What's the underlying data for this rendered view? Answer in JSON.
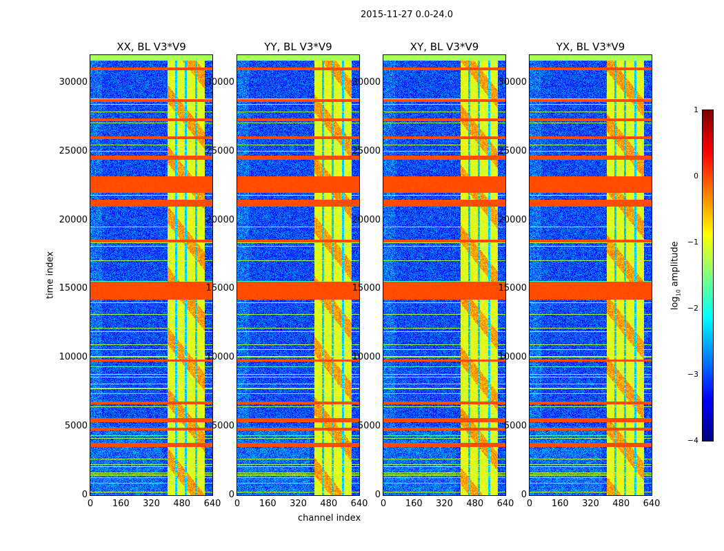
{
  "chart_data": {
    "type": "heatmap",
    "title": "2015-11-27 0.0-24.0",
    "xlabel": "channel index",
    "ylabel": "time index",
    "xlim": [
      0,
      640
    ],
    "ylim": [
      0,
      32000
    ],
    "xticks": [
      "0",
      "160",
      "320",
      "480",
      "640"
    ],
    "yticks": [
      "0",
      "5000",
      "10000",
      "15000",
      "20000",
      "25000",
      "30000"
    ],
    "panels": [
      {
        "title": "XX, BL V3*V9"
      },
      {
        "title": "YY, BL V3*V9"
      },
      {
        "title": "XY, BL V3*V9"
      },
      {
        "title": "YX, BL V3*V9"
      }
    ],
    "colormap": "jet",
    "colorbar": {
      "label_prefix": "log",
      "label_sub": "10",
      "label_suffix": " amplitude",
      "range": [
        -4,
        1
      ],
      "ticks": [
        "1",
        "0",
        "−1",
        "−2",
        "−3",
        "−4"
      ]
    },
    "features": {
      "background_log_amplitude": -3.0,
      "bright_channel_band": [
        404,
        600
      ],
      "bright_band_log_amplitude": -1.0,
      "dark_channel_gaps": [
        451,
        502,
        556
      ],
      "rfi_time_bands": [
        [
          14200,
          15500
        ],
        [
          21000,
          21500
        ],
        [
          22000,
          23200
        ],
        [
          24400,
          24700
        ],
        [
          25900,
          26100
        ],
        [
          27200,
          27400
        ],
        [
          28600,
          28800
        ],
        [
          30900,
          31100
        ],
        [
          18400,
          18600
        ],
        [
          9700,
          9850
        ],
        [
          6600,
          6800
        ],
        [
          5300,
          5600
        ],
        [
          4700,
          4900
        ],
        [
          3500,
          3800
        ]
      ],
      "rfi_log_amplitude": 0.0
    }
  }
}
